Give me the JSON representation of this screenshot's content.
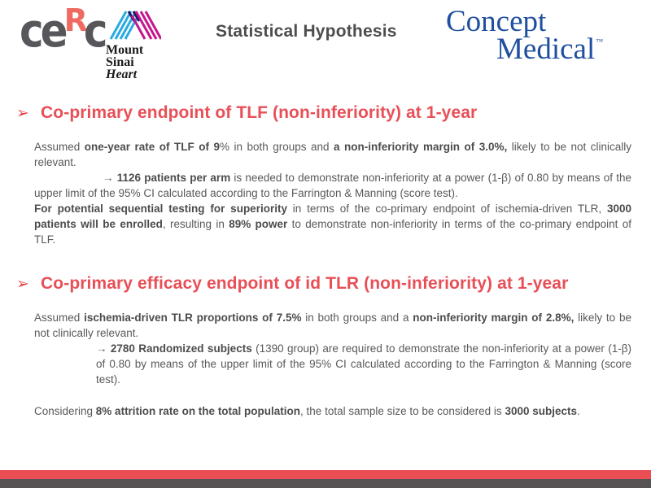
{
  "header": {
    "title": "Statistical Hypothesis",
    "cerc_logo": {
      "part1": "ce",
      "part2": "R",
      "part3": "c"
    },
    "mount_sinai": {
      "line1": "Mount",
      "line2": "Sinai",
      "line3": "Heart"
    },
    "concept_medical": {
      "line1": "Concept",
      "line2": "Medical",
      "tm": "™"
    }
  },
  "colors": {
    "heading_red": "#e84f57",
    "body_gray": "#595959",
    "title_gray": "#4d4d4d",
    "footer_red": "#ea4e55",
    "footer_gray": "#575254",
    "cerc_gray": "#57575b",
    "cerc_red": "#ef6a60",
    "mount_sinai_cyan": "#29abe2",
    "mount_sinai_magenta": "#c6168d",
    "mount_sinai_navy": "#1b1464",
    "concept_medical_blue": "#1f4f9f"
  },
  "sections": [
    {
      "bullet": "➢",
      "heading": "Co-primary endpoint of TLF (non-inferiority) at 1-year",
      "paragraphs": [
        [
          {
            "t": "Assumed ",
            "b": false
          },
          {
            "t": "one-year rate of TLF of 9",
            "b": true
          },
          {
            "t": "% in both groups and ",
            "b": false
          },
          {
            "t": "a non-inferiority margin of 3.0%,",
            "b": true
          },
          {
            "t": " likely to be not clinically relevant.",
            "b": false
          }
        ],
        [
          {
            "t": "→ ",
            "b": false
          },
          {
            "t": "1126 patients per arm",
            "b": true
          },
          {
            "t": " is needed to demonstrate non-inferiority at a power (1-β) of 0.80 by means of the upper limit of the 95% CI calculated according to the Farrington & Manning (score test).",
            "b": false
          }
        ],
        [
          {
            "t": "For potential sequential testing for superiority",
            "b": true
          },
          {
            "t": " in terms of the co-primary endpoint of ischemia-driven TLR, ",
            "b": false
          },
          {
            "t": "3000 patients will be enrolled",
            "b": true
          },
          {
            "t": ", resulting in ",
            "b": false
          },
          {
            "t": "89% power",
            "b": true
          },
          {
            "t": " to demonstrate non-inferiority in terms of the co-primary endpoint of TLF.",
            "b": false
          }
        ]
      ]
    },
    {
      "bullet": "➢",
      "heading": "Co-primary efficacy endpoint of id TLR (non-inferiority) at 1-year",
      "paragraphs": [
        [
          {
            "t": "Assumed ",
            "b": false
          },
          {
            "t": "ischemia-driven TLR proportions of 7.5%",
            "b": true
          },
          {
            "t": " in both groups and a ",
            "b": false
          },
          {
            "t": "non-inferiority margin of 2.8%,",
            "b": true
          },
          {
            "t": " likely to be not clinically relevant.",
            "b": false
          }
        ],
        [
          {
            "t": "→ ",
            "b": false
          },
          {
            "t": "2780 Randomized subjects",
            "b": true
          },
          {
            "t": " (1390 group) are required to demonstrate the non-inferiority at a power (1-β) of 0.80 by means of the upper limit of the 95% CI calculated according to the Farrington & Manning (score test).",
            "b": false
          }
        ],
        [
          {
            "t": "Considering ",
            "b": false
          },
          {
            "t": "8% attrition rate on the total population",
            "b": true
          },
          {
            "t": ", the total sample size to be considered is ",
            "b": false
          },
          {
            "t": "3000 subjects",
            "b": true
          },
          {
            "t": ".",
            "b": false
          }
        ]
      ]
    }
  ]
}
